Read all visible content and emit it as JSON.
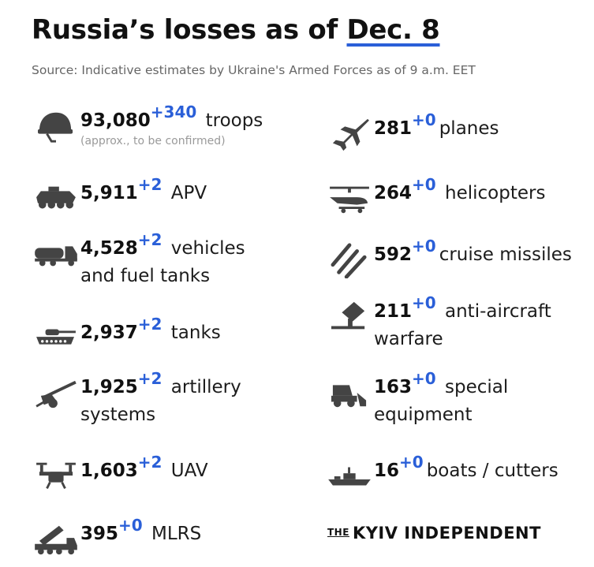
{
  "title_prefix": "Russia’s losses as of ",
  "title_date": "Dec. 8",
  "source": "Source: Indicative estimates by Ukraine's Armed Forces as of 9 a.m. EET",
  "accent_color": "#2a5fd8",
  "left": [
    {
      "icon": "helmet-icon",
      "value": "93,080",
      "delta": "+340",
      "label1": "troops",
      "label2": "",
      "note": "(approx., to be confirmed)"
    },
    {
      "icon": "apv-icon",
      "value": "5,911",
      "delta": "+2",
      "label1": "APV",
      "label2": "",
      "note": ""
    },
    {
      "icon": "fuel-truck-icon",
      "value": "4,528",
      "delta": "+2",
      "label1": "vehicles",
      "label2": "and fuel tanks",
      "note": ""
    },
    {
      "icon": "tank-icon",
      "value": "2,937",
      "delta": "+2",
      "label1": "tanks",
      "label2": "",
      "note": ""
    },
    {
      "icon": "artillery-icon",
      "value": "1,925",
      "delta": "+2",
      "label1": "artillery",
      "label2": "systems",
      "note": ""
    },
    {
      "icon": "drone-icon",
      "value": "1,603",
      "delta": "+2",
      "label1": "UAV",
      "label2": "",
      "note": ""
    },
    {
      "icon": "mlrs-icon",
      "value": "395",
      "delta": "+0",
      "label1": "MLRS",
      "label2": "",
      "note": ""
    }
  ],
  "right": [
    {
      "icon": "plane-icon",
      "value": "281",
      "delta": "+0",
      "label1": "planes",
      "label2": "",
      "note": ""
    },
    {
      "icon": "helicopter-icon",
      "value": "264",
      "delta": "+0",
      "label1": "helicopters",
      "label2": "",
      "note": ""
    },
    {
      "icon": "missiles-icon",
      "value": "592",
      "delta": "+0",
      "label1": "cruise missiles",
      "label2": "",
      "note": ""
    },
    {
      "icon": "anti-aircraft-icon",
      "value": "211",
      "delta": "+0",
      "label1": "anti-aircraft",
      "label2": "warfare",
      "note": ""
    },
    {
      "icon": "loader-icon",
      "value": "163",
      "delta": "+0",
      "label1": "special",
      "label2": "equipment",
      "note": ""
    },
    {
      "icon": "boat-icon",
      "value": "16",
      "delta": "+0",
      "label1": "boats / cutters",
      "label2": "",
      "note": ""
    }
  ],
  "brand_the": "THE",
  "brand_name": "KYIV INDEPENDENT"
}
